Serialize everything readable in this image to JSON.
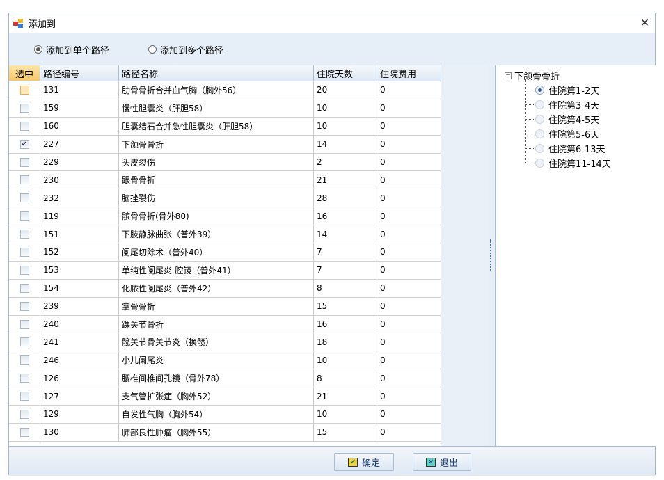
{
  "window": {
    "title": "添加到",
    "close_icon": "close-icon"
  },
  "options": [
    {
      "label": "添加到单个路径",
      "selected": true
    },
    {
      "label": "添加到多个路径",
      "selected": false
    }
  ],
  "grid": {
    "columns": [
      "选中",
      "路径编号",
      "路径名称",
      "住院天数",
      "住院费用"
    ],
    "rows": [
      {
        "checked": false,
        "id": "131",
        "name": "肋骨骨折合并血气胸（胸外56）",
        "days": "20",
        "cost": "0"
      },
      {
        "checked": false,
        "id": "159",
        "name": "慢性胆囊炎（肝胆58）",
        "days": "10",
        "cost": "0"
      },
      {
        "checked": false,
        "id": "160",
        "name": "胆囊结石合并急性胆囊炎（肝胆58）",
        "days": "10",
        "cost": "0"
      },
      {
        "checked": true,
        "id": "227",
        "name": "下颌骨骨折",
        "days": "14",
        "cost": "0"
      },
      {
        "checked": false,
        "id": "229",
        "name": "头皮裂伤",
        "days": "2",
        "cost": "0"
      },
      {
        "checked": false,
        "id": "230",
        "name": "跟骨骨折",
        "days": "21",
        "cost": "0"
      },
      {
        "checked": false,
        "id": "232",
        "name": "脑挫裂伤",
        "days": "28",
        "cost": "0"
      },
      {
        "checked": false,
        "id": "119",
        "name": "髌骨骨折(骨外80)",
        "days": "16",
        "cost": "0"
      },
      {
        "checked": false,
        "id": "151",
        "name": "下肢静脉曲张（普外39）",
        "days": "14",
        "cost": "0"
      },
      {
        "checked": false,
        "id": "152",
        "name": "阑尾切除术（普外40）",
        "days": "7",
        "cost": "0"
      },
      {
        "checked": false,
        "id": "153",
        "name": "单纯性阑尾炎-腔镜（普外41）",
        "days": "7",
        "cost": "0"
      },
      {
        "checked": false,
        "id": "154",
        "name": "化脓性阑尾炎（普外42）",
        "days": "8",
        "cost": "0"
      },
      {
        "checked": false,
        "id": "239",
        "name": "掌骨骨折",
        "days": "15",
        "cost": "0"
      },
      {
        "checked": false,
        "id": "240",
        "name": "踝关节骨折",
        "days": "16",
        "cost": "0"
      },
      {
        "checked": false,
        "id": "241",
        "name": "髋关节骨关节炎（换髋）",
        "days": "18",
        "cost": "0"
      },
      {
        "checked": false,
        "id": "246",
        "name": "小儿阑尾炎",
        "days": "10",
        "cost": "0"
      },
      {
        "checked": false,
        "id": "126",
        "name": "腰椎间椎间孔镜（骨外78）",
        "days": "8",
        "cost": "0"
      },
      {
        "checked": false,
        "id": "127",
        "name": "支气管扩张症（胸外52）",
        "days": "21",
        "cost": "0"
      },
      {
        "checked": false,
        "id": "129",
        "name": "自发性气胸（胸外54）",
        "days": "10",
        "cost": "0"
      },
      {
        "checked": false,
        "id": "130",
        "name": "肺部良性肿瘤（胸外55）",
        "days": "15",
        "cost": "0"
      }
    ]
  },
  "tree": {
    "root": "下颌骨骨折",
    "children": [
      {
        "label": "住院第1-2天",
        "selected": true
      },
      {
        "label": "住院第3-4天",
        "selected": false
      },
      {
        "label": "住院第4-5天",
        "selected": false
      },
      {
        "label": "住院第5-6天",
        "selected": false
      },
      {
        "label": "住院第6-13天",
        "selected": false
      },
      {
        "label": "住院第11-14天",
        "selected": false
      }
    ]
  },
  "footer": {
    "ok": "确定",
    "exit": "退出"
  }
}
